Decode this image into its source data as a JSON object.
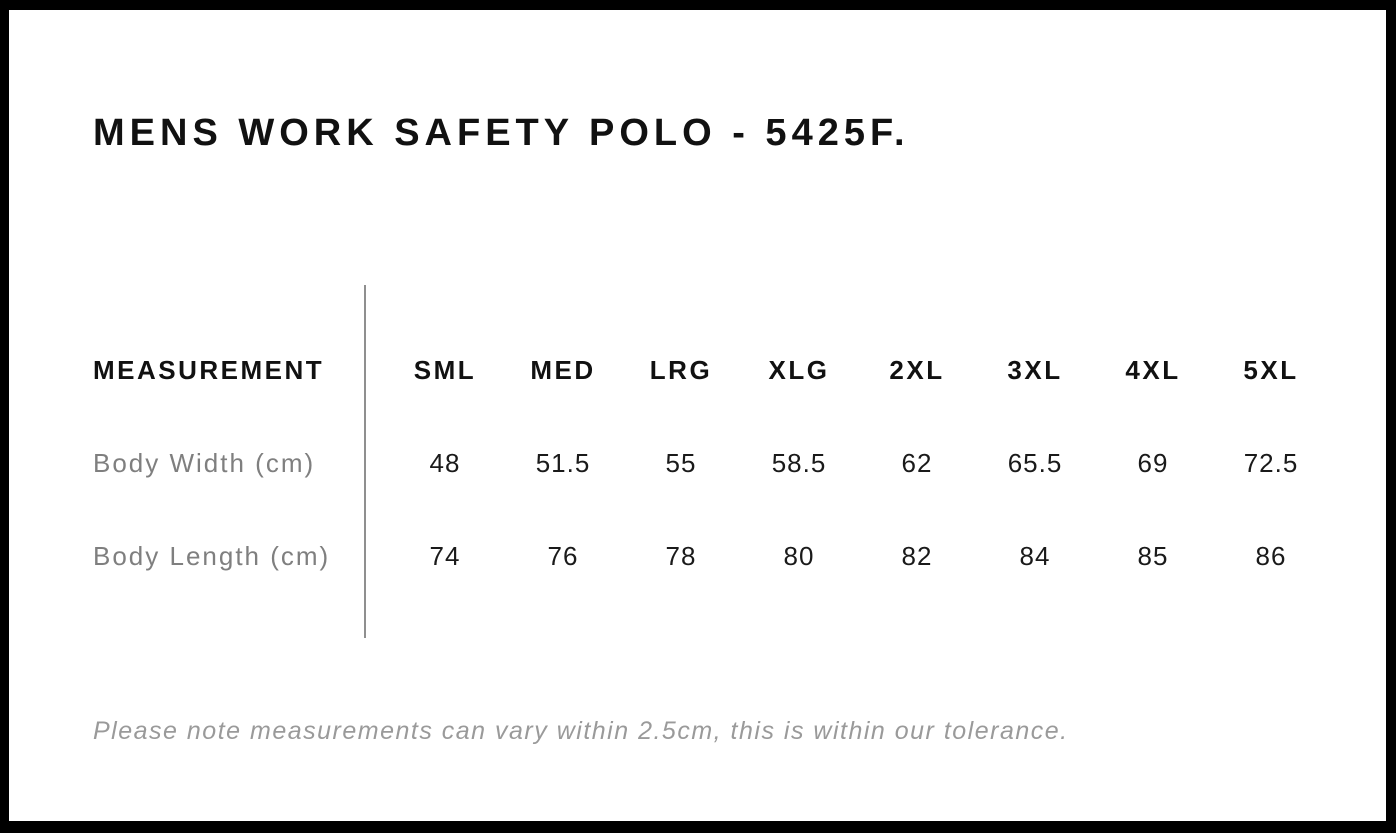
{
  "title": "MENS WORK SAFETY POLO - 5425F.",
  "footnote": "Please note measurements can vary within 2.5cm, this is within our tolerance.",
  "colors": {
    "frame": "#000000",
    "background": "#ffffff",
    "heading_text": "#111111",
    "value_text": "#1a1a1a",
    "muted_label_text": "#7f7f7f",
    "footnote_text": "#9a9a9a",
    "divider": "#8f8f8f"
  },
  "chart_data": {
    "type": "table",
    "title": "MENS WORK SAFETY POLO - 5425F.",
    "columns": [
      "MEASUREMENT",
      "SML",
      "MED",
      "LRG",
      "XLG",
      "2XL",
      "3XL",
      "4XL",
      "5XL"
    ],
    "rows": [
      {
        "label": "Body Width (cm)",
        "values": [
          "48",
          "51.5",
          "55",
          "58.5",
          "62",
          "65.5",
          "69",
          "72.5"
        ]
      },
      {
        "label": "Body Length (cm)",
        "values": [
          "74",
          "76",
          "78",
          "80",
          "82",
          "84",
          "85",
          "86"
        ]
      }
    ],
    "layout_hints": {
      "grid": false,
      "divider_between_label_and_values": true,
      "tolerance_note": "Please note measurements can vary within 2.5cm, this is within our tolerance."
    }
  }
}
